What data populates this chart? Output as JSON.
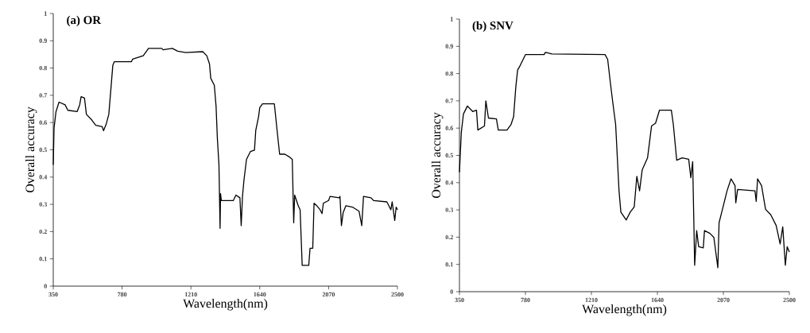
{
  "chart_data": [
    {
      "type": "line",
      "title": "(a)  OR",
      "xlabel": "Wavelength(nm)",
      "ylabel": "Overall accuracy",
      "color": "#000000",
      "xlim": [
        350,
        2500
      ],
      "ylim": [
        0,
        1
      ],
      "xticks": [
        350,
        780,
        1210,
        1640,
        2070,
        2500
      ],
      "yticks": [
        0,
        0.1,
        0.2,
        0.3,
        0.4,
        0.5,
        0.6,
        0.7,
        0.8,
        0.9,
        1
      ],
      "x": [
        350,
        355,
        367,
        386,
        424,
        441,
        499,
        515,
        524,
        545,
        557,
        590,
        615,
        656,
        664,
        681,
        697,
        711,
        722,
        731,
        838,
        846,
        912,
        945,
        1028,
        1036,
        1094,
        1127,
        1177,
        1284,
        1309,
        1326,
        1334,
        1356,
        1367,
        1375,
        1385,
        1392,
        1395,
        1400,
        1475,
        1491,
        1516,
        1524,
        1532,
        1541,
        1557,
        1582,
        1607,
        1615,
        1632,
        1640,
        1657,
        1731,
        1748,
        1764,
        1797,
        1822,
        1843,
        1852,
        1858,
        1880,
        1892,
        1905,
        1946,
        1954,
        1971,
        1979,
        1996,
        2017,
        2029,
        2037,
        2070,
        2079,
        2136,
        2141,
        2150,
        2161,
        2178,
        2219,
        2260,
        2277,
        2288,
        2335,
        2351,
        2434,
        2459,
        2467,
        2483,
        2492,
        2500
      ],
      "values": [
        0.445,
        0.58,
        0.64,
        0.675,
        0.665,
        0.645,
        0.64,
        0.665,
        0.695,
        0.69,
        0.63,
        0.61,
        0.59,
        0.585,
        0.57,
        0.595,
        0.63,
        0.73,
        0.81,
        0.823,
        0.823,
        0.833,
        0.845,
        0.872,
        0.872,
        0.867,
        0.872,
        0.862,
        0.857,
        0.86,
        0.845,
        0.815,
        0.762,
        0.737,
        0.66,
        0.543,
        0.445,
        0.212,
        0.339,
        0.314,
        0.314,
        0.334,
        0.324,
        0.222,
        0.329,
        0.387,
        0.465,
        0.494,
        0.499,
        0.572,
        0.62,
        0.655,
        0.669,
        0.669,
        0.572,
        0.484,
        0.484,
        0.475,
        0.465,
        0.232,
        0.334,
        0.295,
        0.28,
        0.076,
        0.076,
        0.139,
        0.139,
        0.304,
        0.295,
        0.28,
        0.266,
        0.304,
        0.314,
        0.329,
        0.324,
        0.329,
        0.222,
        0.27,
        0.295,
        0.29,
        0.275,
        0.222,
        0.329,
        0.324,
        0.314,
        0.309,
        0.28,
        0.309,
        0.241,
        0.29,
        0.28
      ]
    },
    {
      "type": "line",
      "title": "(b)  SNV",
      "xlabel": "Wavelength(nm)",
      "ylabel": "Overall accuracy",
      "color": "#000000",
      "xlim": [
        350,
        2500
      ],
      "ylim": [
        0,
        1
      ],
      "xticks": [
        350,
        780,
        1210,
        1640,
        2070,
        2500
      ],
      "yticks": [
        0,
        0.1,
        0.2,
        0.3,
        0.4,
        0.5,
        0.6,
        0.7,
        0.8,
        0.9,
        1
      ],
      "x": [
        350,
        362,
        376,
        402,
        436,
        461,
        470,
        513,
        522,
        539,
        591,
        603,
        660,
        686,
        703,
        717,
        729,
        746,
        781,
        902,
        910,
        953,
        1299,
        1316,
        1333,
        1350,
        1368,
        1390,
        1402,
        1437,
        1463,
        1489,
        1506,
        1524,
        1541,
        1576,
        1602,
        1628,
        1654,
        1731,
        1744,
        1766,
        1801,
        1844,
        1858,
        1870,
        1883,
        1896,
        1909,
        1939,
        1947,
        1982,
        2008,
        2034,
        2042,
        2068,
        2094,
        2120,
        2146,
        2151,
        2163,
        2276,
        2284,
        2293,
        2319,
        2345,
        2379,
        2414,
        2440,
        2457,
        2474,
        2486,
        2500
      ],
      "values": [
        0.438,
        0.584,
        0.652,
        0.681,
        0.661,
        0.666,
        0.593,
        0.608,
        0.7,
        0.637,
        0.634,
        0.593,
        0.593,
        0.613,
        0.642,
        0.749,
        0.813,
        0.83,
        0.87,
        0.87,
        0.878,
        0.872,
        0.87,
        0.852,
        0.769,
        0.691,
        0.613,
        0.37,
        0.292,
        0.263,
        0.292,
        0.311,
        0.423,
        0.37,
        0.447,
        0.491,
        0.608,
        0.618,
        0.666,
        0.666,
        0.613,
        0.482,
        0.491,
        0.486,
        0.418,
        0.477,
        0.097,
        0.224,
        0.165,
        0.161,
        0.224,
        0.214,
        0.199,
        0.088,
        0.253,
        0.311,
        0.37,
        0.414,
        0.389,
        0.326,
        0.375,
        0.37,
        0.331,
        0.414,
        0.389,
        0.302,
        0.282,
        0.243,
        0.175,
        0.238,
        0.097,
        0.165,
        0.146
      ]
    }
  ]
}
